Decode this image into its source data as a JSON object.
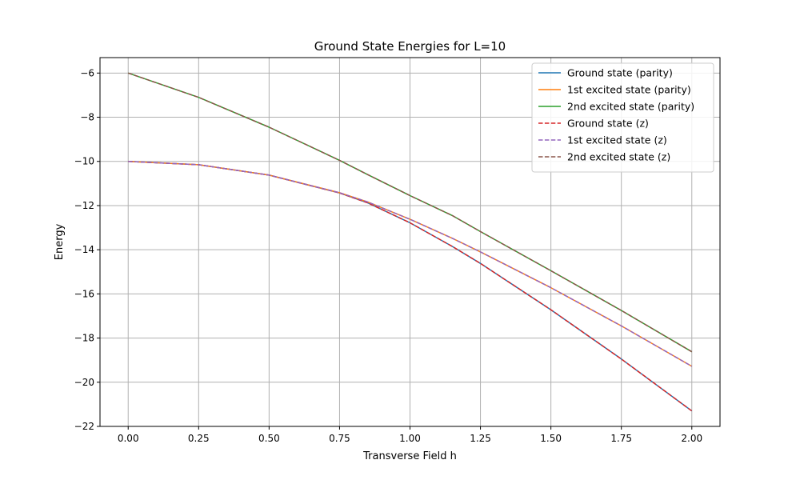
{
  "chart_data": {
    "type": "line",
    "title": "Ground State Energies for L=10",
    "xlabel": "Transverse Field h",
    "ylabel": "Energy",
    "xlim": [
      -0.1,
      2.1
    ],
    "ylim": [
      -22,
      -5.3
    ],
    "xticks": [
      0.0,
      0.25,
      0.5,
      0.75,
      1.0,
      1.25,
      1.5,
      1.75,
      2.0
    ],
    "xtick_labels": [
      "0.00",
      "0.25",
      "0.50",
      "0.75",
      "1.00",
      "1.25",
      "1.50",
      "1.75",
      "2.00"
    ],
    "yticks": [
      -22,
      -20,
      -18,
      -16,
      -14,
      -12,
      -10,
      -8,
      -6
    ],
    "ytick_labels": [
      "−22",
      "−20",
      "−18",
      "−16",
      "−14",
      "−12",
      "−10",
      "−8",
      "−6"
    ],
    "grid": true,
    "legend_position": "top-right",
    "x": [
      0.0,
      0.25,
      0.5,
      0.75,
      0.85,
      1.0,
      1.15,
      1.25,
      1.5,
      1.75,
      2.0
    ],
    "series": [
      {
        "name": "Ground state (parity)",
        "color": "#1f77b4",
        "dash": "solid",
        "values": [
          -10.0,
          -10.15,
          -10.62,
          -11.43,
          -11.88,
          -12.78,
          -13.85,
          -14.62,
          -16.72,
          -18.95,
          -21.3
        ]
      },
      {
        "name": "1st excited state (parity)",
        "color": "#ff7f0e",
        "dash": "solid",
        "values": [
          -10.0,
          -10.15,
          -10.62,
          -11.42,
          -11.84,
          -12.62,
          -13.48,
          -14.1,
          -15.72,
          -17.45,
          -19.28
        ]
      },
      {
        "name": "2nd excited state (parity)",
        "color": "#2ca02c",
        "dash": "solid",
        "values": [
          -6.0,
          -7.1,
          -8.45,
          -9.95,
          -10.6,
          -11.55,
          -12.45,
          -13.18,
          -14.95,
          -16.75,
          -18.62
        ]
      },
      {
        "name": "Ground state (z)",
        "color": "#d62728",
        "dash": "dashed",
        "values": [
          -10.0,
          -10.15,
          -10.62,
          -11.43,
          -11.88,
          -12.78,
          -13.85,
          -14.62,
          -16.72,
          -18.95,
          -21.3
        ]
      },
      {
        "name": "1st excited state (z)",
        "color": "#9467bd",
        "dash": "dashed",
        "values": [
          -10.0,
          -10.15,
          -10.62,
          -11.42,
          -11.84,
          -12.62,
          -13.48,
          -14.1,
          -15.72,
          -17.45,
          -19.28
        ]
      },
      {
        "name": "2nd excited state (z)",
        "color": "#8c564b",
        "dash": "dashed",
        "values": [
          -6.0,
          -7.1,
          -8.45,
          -9.95,
          -10.6,
          -11.55,
          -12.45,
          -13.18,
          -14.95,
          -16.75,
          -18.62
        ]
      }
    ]
  }
}
